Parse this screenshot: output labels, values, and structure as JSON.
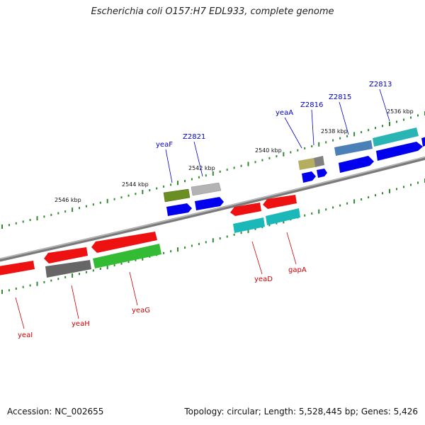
{
  "header": {
    "title": "Escherichia coli O157:H7 EDL933, complete genome"
  },
  "footer": {
    "accession": "Accession: NC_002655",
    "stats": "Topology: circular; Length: 5,528,445 bp; Genes: 5,426"
  },
  "colors": {
    "forward_label": "#0000cc",
    "reverse_label": "#cc0000",
    "backbone": "#8a8a8a",
    "tick": "#2e8b2e"
  },
  "scale_labels": [
    "2546 kbp",
    "2544 kbp",
    "2542 kbp",
    "2540 kbp",
    "2538 kbp",
    "2536 kbp"
  ],
  "forward_genes": [
    {
      "name": "yeaF",
      "color": "#6b8e23",
      "companion_color": "#0000ee"
    },
    {
      "name": "Z2821",
      "color": "#b3b3b3",
      "companion_color": "#0000ee"
    },
    {
      "name": "yeaA",
      "color": "#b5ad5f",
      "companion_color": "#0000ee"
    },
    {
      "name": "Z2816",
      "color": "#808080",
      "companion_color": "#0000ee"
    },
    {
      "name": "Z2815",
      "color": "#4a7fb8",
      "companion_color": "#0000ee"
    },
    {
      "name": "Z2813",
      "color": "#2ab5b5",
      "companion_color": "#0000ee"
    }
  ],
  "reverse_genes": [
    {
      "name": "yeaI",
      "color": "#ee1111"
    },
    {
      "name": "yeaH",
      "color": "#666666"
    },
    {
      "name": "yeaG",
      "color": "#33bb33"
    },
    {
      "name": "yeaD",
      "color": "#1ab8b8"
    },
    {
      "name": "gapA",
      "color": "#1ab8b8"
    }
  ]
}
